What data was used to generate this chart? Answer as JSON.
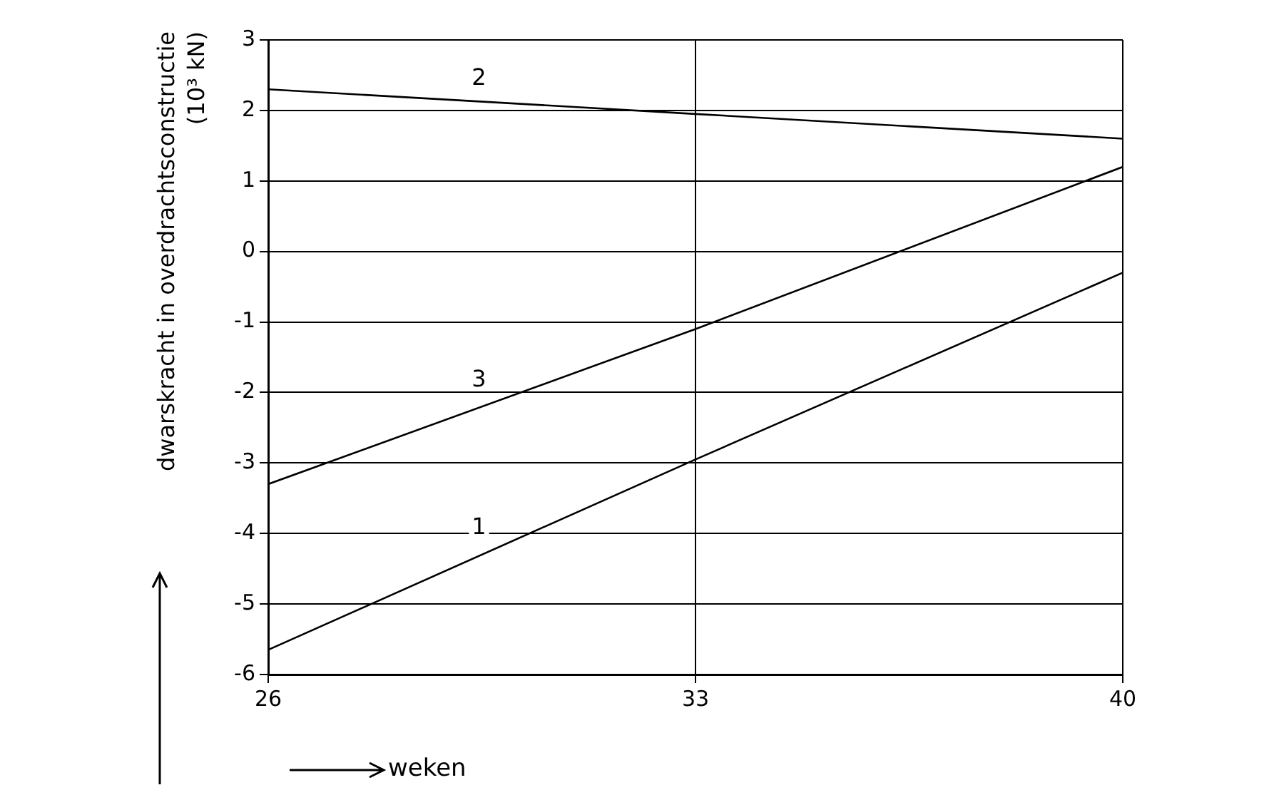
{
  "chart_data": {
    "type": "line",
    "xlabel": "weken",
    "ylabel": "dwarskracht in overdrachtsconstructie\n(10³ kN)",
    "x": [
      26,
      33,
      40
    ],
    "series": [
      {
        "name": "1",
        "color": "#000000",
        "values": [
          -5.65,
          -2.95,
          -0.3
        ]
      },
      {
        "name": "2",
        "color": "#000000",
        "values": [
          2.3,
          1.95,
          1.6
        ]
      },
      {
        "name": "3",
        "color": "#000000",
        "values": [
          -3.3,
          -1.1,
          1.2
        ]
      }
    ],
    "xlim": [
      26,
      40
    ],
    "xticks": [
      26,
      33,
      40
    ],
    "ylim": [
      -6,
      3
    ],
    "yticks": [
      -6,
      -5,
      -4,
      -3,
      -2,
      -1,
      0,
      1,
      2,
      3
    ],
    "grid": true,
    "legend": false,
    "marker": "none",
    "line_style": "solid"
  }
}
